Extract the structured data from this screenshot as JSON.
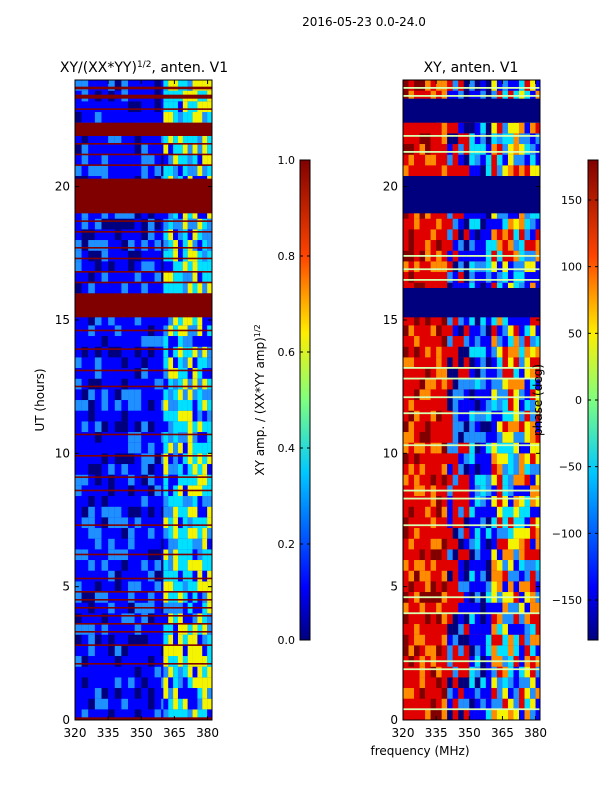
{
  "suptitle": "2016-05-23 0.0-24.0",
  "colors": {
    "dark_red": "#800000",
    "red": "#e00000",
    "orange": "#ff8c00",
    "yellow": "#f4f400",
    "cyan": "#00e0ff",
    "light_blue": "#1e90ff",
    "blue": "#0000ff",
    "navy": "#00007f"
  },
  "chart_data": [
    {
      "type": "heatmap",
      "title": "XY/(XX*YY)^(1/2), anten. V1",
      "title_main": "XY/(XX*YY)",
      "title_sup": "1/2",
      "title_rest": ", anten. V1",
      "xlabel": "",
      "ylabel": "UT (hours)",
      "xlim": [
        320,
        382
      ],
      "ylim": [
        0,
        24
      ],
      "xticks": [
        320,
        335,
        350,
        365,
        380
      ],
      "yticks": [
        0,
        5,
        10,
        15,
        20
      ],
      "saturated_bands_hours": [
        [
          0,
          0.1
        ],
        [
          15.1,
          16.0
        ],
        [
          19.0,
          20.3
        ],
        [
          21.9,
          22.4
        ],
        [
          23.3,
          23.45
        ],
        [
          23.65,
          23.75
        ]
      ],
      "thin_lines_hours": [
        2.1,
        2.8,
        3.3,
        3.6,
        3.9,
        4.2,
        4.5,
        4.8,
        5.3,
        6.2,
        7.3,
        8.6,
        9.1,
        9.9,
        10.7,
        12.5,
        13.1,
        13.9,
        14.6,
        16.4,
        16.8,
        17.3,
        17.7,
        18.3,
        18.7,
        20.8,
        21.2,
        21.6,
        22.9
      ],
      "colorbar": {
        "label": "XY amp. / (XX*YY amp)^(1/2)",
        "label_main": "XY amp. / (XX*YY amp)",
        "label_sup": "1/2",
        "min": 0.0,
        "max": 1.0,
        "ticks": [
          "0.0",
          "0.2",
          "0.4",
          "0.6",
          "0.8",
          "1.0"
        ],
        "tick_values": [
          0.0,
          0.2,
          0.4,
          0.6,
          0.8,
          1.0
        ]
      }
    },
    {
      "type": "heatmap",
      "title": "XY, anten. V1",
      "xlabel": "frequency (MHz)",
      "ylabel": "",
      "xlim": [
        320,
        382
      ],
      "ylim": [
        0,
        24
      ],
      "xticks": [
        320,
        335,
        350,
        365,
        380
      ],
      "yticks": [
        0,
        5,
        10,
        15,
        20
      ],
      "navy_bands_hours": [
        [
          15.1,
          16.2
        ],
        [
          19.0,
          20.4
        ],
        [
          22.4,
          23.3
        ]
      ],
      "thin_lines_hours": [
        0.4,
        1.9,
        2.2,
        4.0,
        4.6,
        7.3,
        8.3,
        8.6,
        10.3,
        11.5,
        12.1,
        12.8,
        13.2,
        16.5,
        16.9,
        17.4,
        21.3,
        21.9,
        23.4,
        23.7
      ],
      "colorbar": {
        "label": "phase (deg)",
        "min": -180,
        "max": 180,
        "ticks": [
          "−150",
          "−100",
          "−50",
          "0",
          "50",
          "100",
          "150"
        ],
        "tick_values": [
          -150,
          -100,
          -50,
          0,
          50,
          100,
          150
        ]
      }
    }
  ]
}
